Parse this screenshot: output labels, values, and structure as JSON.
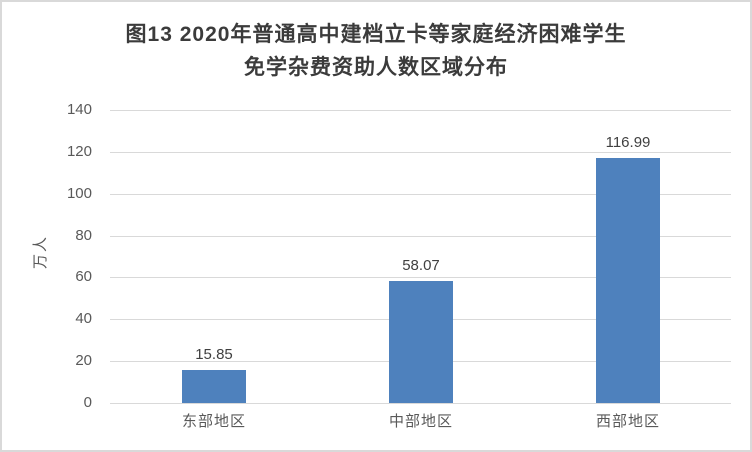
{
  "title": {
    "line1": "图13 2020年普通高中建档立卡等家庭经济困难学生",
    "line2": "免学杂费资助人数区域分布"
  },
  "chart_data": {
    "type": "bar",
    "title": "图13 2020年普通高中建档立卡等家庭经济困难学生免学杂费资助人数区域分布",
    "categories": [
      "东部地区",
      "中部地区",
      "西部地区"
    ],
    "values": [
      15.85,
      58.07,
      116.99
    ],
    "data_labels": [
      "15.85",
      "58.07",
      "116.99"
    ],
    "xlabel": "",
    "ylabel": "万人",
    "ylim": [
      0,
      140
    ],
    "yticks": [
      0,
      20,
      40,
      60,
      80,
      100,
      120,
      140
    ],
    "grid": true,
    "legend_position": "none",
    "bar_color": "#4e81bd",
    "gridline_color": "#d9d9d9",
    "axis_text_color": "#595959",
    "data_label_color": "#404040",
    "title_color": "#3b3b3b"
  }
}
